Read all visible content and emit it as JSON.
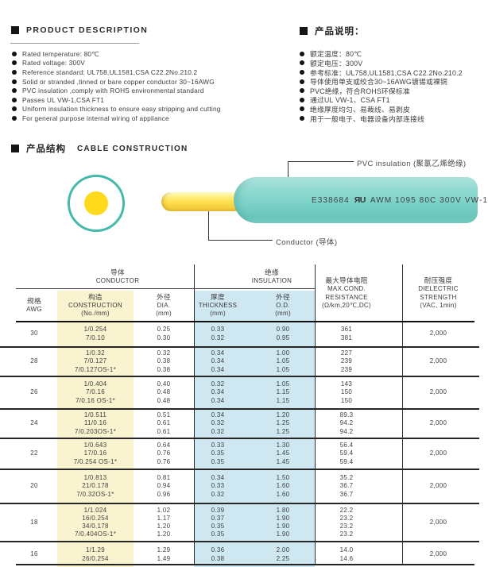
{
  "description_en": {
    "heading": "PRODUCT  DESCRIPTION",
    "items": [
      "Rated temperature: 80℃",
      "Rated voltage: 300V",
      "Reference standard: UL758,UL1581,CSA C22.2No.210.2",
      "Solid or stranded ,tinned or bare copper conductor 30~16AWG",
      "PVC insulation ,comply with ROHS environmental standard",
      "Passes UL VW-1,CSA FT1",
      "Uniform insulation thickness to ensure easy stripping and cutting",
      "For general purpose internal wiring of appliance"
    ]
  },
  "description_cn": {
    "heading": "产品说明：",
    "items": [
      "额定温度：80℃",
      "额定电压：300V",
      "参考标准：UL758,UL1581,CSA C22.2No.210.2",
      "导体使用单支或绞合30~16AWG镀锡或裸铜",
      "PVC绝缘，符合ROHS环保标准",
      "通过UL VW-1、CSA FT1",
      "绝缘厚度均匀、易裁线、易剥皮",
      "用于一般电子、电器设备内部连接线"
    ]
  },
  "construction": {
    "heading_cn": "产品结构",
    "heading_en": "CABLE  CONSTRUCTION",
    "labels": {
      "insulation": "PVC insulation (聚氯乙烯绝缘)",
      "conductor": "Conductor (导体)"
    },
    "cable_print": {
      "e_number": "E338684",
      "ul_mark": "ЯU",
      "spec": "AWM 1095 80C 300V VW-1"
    },
    "colors": {
      "insulation_teal": "#7DD2C8",
      "ring_teal": "#45B9AB",
      "conductor_yellow": "#FFE14E",
      "core_yellow": "#FFD91C"
    }
  },
  "table": {
    "colors": {
      "construction_column_bg": "#F9F3CF",
      "insulation_columns_bg": "#CFE7F0"
    },
    "groups": [
      {
        "key": "conductor",
        "lines": [
          "导体",
          "CONDUCTOR"
        ]
      },
      {
        "key": "insulation",
        "lines": [
          "绝缘",
          "INSULATION"
        ]
      }
    ],
    "columns": [
      {
        "key": "awg",
        "lines": [
          "规格",
          "AWG"
        ]
      },
      {
        "key": "construction",
        "lines": [
          "构造",
          "CONSTRUCTION",
          "(No./mm)"
        ]
      },
      {
        "key": "dia",
        "lines": [
          "外径",
          "DIA.",
          "(mm)"
        ]
      },
      {
        "key": "thickness",
        "lines": [
          "厚度",
          "THICKNESS",
          "(mm)"
        ]
      },
      {
        "key": "od",
        "lines": [
          "外径",
          "O.D.",
          "(mm)"
        ]
      },
      {
        "key": "resistance",
        "lines": [
          "最大导体电阻",
          "MAX.COND.",
          "RESISTANCE",
          "(Ω/km,20℃,DC)"
        ]
      },
      {
        "key": "dielectric",
        "lines": [
          "耐压强度",
          "DIELECTRIC",
          "STRENGTH",
          "(VAC, 1min)"
        ]
      }
    ],
    "rows": [
      {
        "awg": "30",
        "construction": [
          "1/0.254",
          "7/0.10"
        ],
        "dia": [
          "0.25",
          "0.30"
        ],
        "thickness": [
          "0.33",
          "0.32"
        ],
        "od": [
          "0.90",
          "0.95"
        ],
        "resistance": [
          "361",
          "381"
        ],
        "dielectric": "2,000"
      },
      {
        "awg": "28",
        "construction": [
          "1/0.32",
          "7/0.127",
          "7/0.127OS-1*"
        ],
        "dia": [
          "0.32",
          "0.38",
          "0.38"
        ],
        "thickness": [
          "0.34",
          "0.34",
          "0.34"
        ],
        "od": [
          "1.00",
          "1.05",
          "1.05"
        ],
        "resistance": [
          "227",
          "239",
          "239"
        ],
        "dielectric": "2,000"
      },
      {
        "awg": "26",
        "construction": [
          "1/0.404",
          "7/0.16",
          "7/0.16 OS-1*"
        ],
        "dia": [
          "0.40",
          "0.48",
          "0.48"
        ],
        "thickness": [
          "0.32",
          "0.34",
          "0.34"
        ],
        "od": [
          "1.05",
          "1.15",
          "1.15"
        ],
        "resistance": [
          "143",
          "150",
          "150"
        ],
        "dielectric": "2,000"
      },
      {
        "awg": "24",
        "construction": [
          "1/0.511",
          "11/0.16",
          "7/0.203OS-1*"
        ],
        "dia": [
          "0.51",
          "0.61",
          "0.61"
        ],
        "thickness": [
          "0.34",
          "0.32",
          "0.32"
        ],
        "od": [
          "1.20",
          "1.25",
          "1.25"
        ],
        "resistance": [
          "89.3",
          "94.2",
          "94.2"
        ],
        "dielectric": "2,000"
      },
      {
        "awg": "22",
        "construction": [
          "1/0.643",
          "17/0.16",
          "7/0.254 OS-1*"
        ],
        "dia": [
          "0.64",
          "0.76",
          "0.76"
        ],
        "thickness": [
          "0.33",
          "0.35",
          "0.35"
        ],
        "od": [
          "1.30",
          "1.45",
          "1.45"
        ],
        "resistance": [
          "56.4",
          "59.4",
          "59.4"
        ],
        "dielectric": "2,000"
      },
      {
        "awg": "20",
        "construction": [
          "1/0.813",
          "21/0.178",
          "7/0.32OS-1*"
        ],
        "dia": [
          "0.81",
          "0.94",
          "0.96"
        ],
        "thickness": [
          "0.34",
          "0.33",
          "0.32"
        ],
        "od": [
          "1.50",
          "1.60",
          "1.60"
        ],
        "resistance": [
          "35.2",
          "36.7",
          "36.7"
        ],
        "dielectric": "2,000"
      },
      {
        "awg": "18",
        "construction": [
          "1/1.024",
          "16/0.254",
          "34/0.178",
          "7/0.404OS-1*"
        ],
        "dia": [
          "1.02",
          "1.17",
          "1.20",
          "1.20"
        ],
        "thickness": [
          "0.39",
          "0.37",
          "0.35",
          "0.35"
        ],
        "od": [
          "1.80",
          "1.90",
          "1.90",
          "1.90"
        ],
        "resistance": [
          "22.2",
          "23.2",
          "23.2",
          "23.2"
        ],
        "dielectric": "2,000"
      },
      {
        "awg": "16",
        "construction": [
          "1/1.29",
          "26/0.254"
        ],
        "dia": [
          "1.29",
          "1.49"
        ],
        "thickness": [
          "0.36",
          "0.38"
        ],
        "od": [
          "2.00",
          "2.25"
        ],
        "resistance": [
          "14.0",
          "14.6"
        ],
        "dielectric": "2,000"
      }
    ]
  }
}
